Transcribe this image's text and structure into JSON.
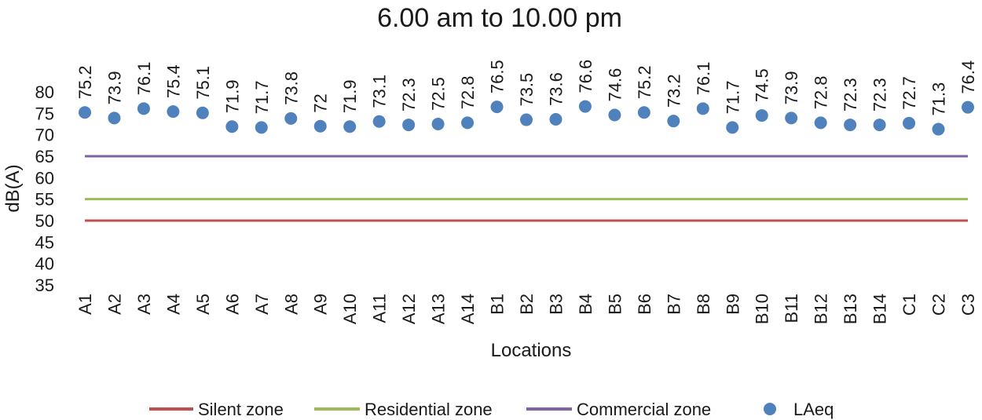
{
  "chart_data": {
    "type": "scatter",
    "title": "6.00 am to 10.00 pm",
    "xlabel": "Locations",
    "ylabel": "dB(A)",
    "ylim": [
      35,
      80
    ],
    "yticks": [
      35,
      40,
      45,
      50,
      55,
      60,
      65,
      70,
      75,
      80
    ],
    "grid": false,
    "legend_position": "bottom",
    "categories": [
      "A1",
      "A2",
      "A3",
      "A4",
      "A5",
      "A6",
      "A7",
      "A8",
      "A9",
      "A10",
      "A11",
      "A12",
      "A13",
      "A14",
      "B1",
      "B2",
      "B3",
      "B4",
      "B5",
      "B6",
      "B7",
      "B8",
      "B9",
      "B10",
      "B11",
      "B12",
      "B13",
      "B14",
      "C1",
      "C2",
      "C3"
    ],
    "series": [
      {
        "name": "Silent zone",
        "kind": "line",
        "color": "#c0504d",
        "values": [
          50,
          50,
          50,
          50,
          50,
          50,
          50,
          50,
          50,
          50,
          50,
          50,
          50,
          50,
          50,
          50,
          50,
          50,
          50,
          50,
          50,
          50,
          50,
          50,
          50,
          50,
          50,
          50,
          50,
          50,
          50
        ]
      },
      {
        "name": "Residential zone",
        "kind": "line",
        "color": "#9bbb59",
        "values": [
          55,
          55,
          55,
          55,
          55,
          55,
          55,
          55,
          55,
          55,
          55,
          55,
          55,
          55,
          55,
          55,
          55,
          55,
          55,
          55,
          55,
          55,
          55,
          55,
          55,
          55,
          55,
          55,
          55,
          55,
          55
        ]
      },
      {
        "name": "Commercial zone",
        "kind": "line",
        "color": "#8064a2",
        "values": [
          65,
          65,
          65,
          65,
          65,
          65,
          65,
          65,
          65,
          65,
          65,
          65,
          65,
          65,
          65,
          65,
          65,
          65,
          65,
          65,
          65,
          65,
          65,
          65,
          65,
          65,
          65,
          65,
          65,
          65,
          65
        ]
      },
      {
        "name": "LAeq",
        "kind": "marker",
        "color": "#4f81bd",
        "values": [
          75.2,
          73.9,
          76.1,
          75.4,
          75.1,
          71.9,
          71.7,
          73.8,
          72,
          71.9,
          73.1,
          72.3,
          72.5,
          72.8,
          76.5,
          73.5,
          73.6,
          76.6,
          74.6,
          75.2,
          73.2,
          76.1,
          71.7,
          74.5,
          73.9,
          72.8,
          72.3,
          72.3,
          72.7,
          71.3,
          76.4
        ]
      }
    ]
  }
}
